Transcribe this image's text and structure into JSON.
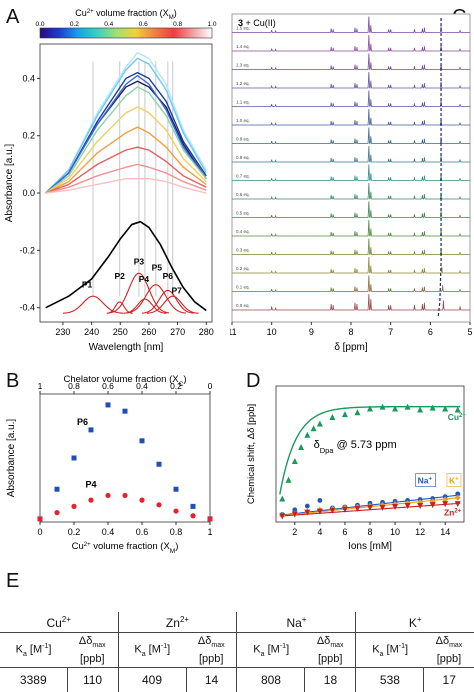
{
  "panels": {
    "A": "A",
    "B": "B",
    "C": "C",
    "D": "D",
    "E": "E"
  },
  "chart_data": [
    {
      "id": "A",
      "type": "line",
      "xlabel": "Wavelength [nm]",
      "ylabel": "Absorbance [a.u.]",
      "xlim": [
        222,
        282
      ],
      "ylim": [
        -0.45,
        0.52
      ],
      "xticks": [
        230,
        240,
        250,
        260,
        270,
        280
      ],
      "yticks": [
        -0.4,
        -0.2,
        0.0,
        0.2,
        0.4
      ],
      "colorbar": {
        "label": "Cu²⁺ volume fraction (X",
        "label_sub": "M",
        "label_end": ")",
        "ticks": [
          "0.0",
          "0.2",
          "0.4",
          "0.6",
          "0.8",
          "1.0"
        ]
      },
      "series": [
        {
          "color": "#b0e8ff",
          "values": [
            [
              224,
              0.0
            ],
            [
              232,
              0.08
            ],
            [
              242,
              0.28
            ],
            [
              252,
              0.44
            ],
            [
              256,
              0.49
            ],
            [
              260,
              0.47
            ],
            [
              266,
              0.38
            ],
            [
              272,
              0.22
            ],
            [
              280,
              0.08
            ]
          ]
        },
        {
          "color": "#6ec8f0",
          "values": [
            [
              224,
              0.0
            ],
            [
              232,
              0.08
            ],
            [
              242,
              0.27
            ],
            [
              252,
              0.43
            ],
            [
              256,
              0.47
            ],
            [
              260,
              0.45
            ],
            [
              266,
              0.36
            ],
            [
              272,
              0.21
            ],
            [
              280,
              0.07
            ]
          ]
        },
        {
          "color": "#1a3e9b",
          "values": [
            [
              224,
              0.0
            ],
            [
              232,
              0.07
            ],
            [
              242,
              0.25
            ],
            [
              252,
              0.4
            ],
            [
              256,
              0.42
            ],
            [
              260,
              0.4
            ],
            [
              266,
              0.32
            ],
            [
              272,
              0.18
            ],
            [
              280,
              0.06
            ]
          ]
        },
        {
          "color": "#1a1a6e",
          "values": [
            [
              224,
              0.0
            ],
            [
              232,
              0.07
            ],
            [
              242,
              0.24
            ],
            [
              252,
              0.37
            ],
            [
              256,
              0.39
            ],
            [
              260,
              0.37
            ],
            [
              266,
              0.3
            ],
            [
              272,
              0.17
            ],
            [
              280,
              0.05
            ]
          ]
        },
        {
          "color": "#3d6bd9",
          "values": [
            [
              224,
              0.0
            ],
            [
              232,
              0.07
            ],
            [
              242,
              0.24
            ],
            [
              252,
              0.38
            ],
            [
              256,
              0.41
            ],
            [
              260,
              0.38
            ],
            [
              266,
              0.29
            ],
            [
              272,
              0.16
            ],
            [
              280,
              0.05
            ]
          ]
        },
        {
          "color": "#8ad3a8",
          "values": [
            [
              224,
              0.0
            ],
            [
              232,
              0.06
            ],
            [
              242,
              0.22
            ],
            [
              252,
              0.34
            ],
            [
              256,
              0.37
            ],
            [
              260,
              0.35
            ],
            [
              266,
              0.27
            ],
            [
              272,
              0.15
            ],
            [
              280,
              0.05
            ]
          ]
        },
        {
          "color": "#f0d060",
          "values": [
            [
              224,
              0.0
            ],
            [
              232,
              0.05
            ],
            [
              242,
              0.18
            ],
            [
              252,
              0.28
            ],
            [
              256,
              0.3
            ],
            [
              260,
              0.28
            ],
            [
              266,
              0.22
            ],
            [
              272,
              0.12
            ],
            [
              280,
              0.04
            ]
          ]
        },
        {
          "color": "#f0a040",
          "values": [
            [
              224,
              0.0
            ],
            [
              232,
              0.04
            ],
            [
              242,
              0.14
            ],
            [
              252,
              0.21
            ],
            [
              256,
              0.23
            ],
            [
              260,
              0.21
            ],
            [
              266,
              0.16
            ],
            [
              272,
              0.09
            ],
            [
              280,
              0.03
            ]
          ]
        },
        {
          "color": "#e66060",
          "values": [
            [
              224,
              0.0
            ],
            [
              232,
              0.03
            ],
            [
              242,
              0.1
            ],
            [
              252,
              0.15
            ],
            [
              256,
              0.16
            ],
            [
              260,
              0.15
            ],
            [
              266,
              0.11
            ],
            [
              272,
              0.06
            ],
            [
              280,
              0.02
            ]
          ]
        },
        {
          "color": "#f09090",
          "values": [
            [
              224,
              0.0
            ],
            [
              232,
              0.02
            ],
            [
              242,
              0.06
            ],
            [
              252,
              0.09
            ],
            [
              256,
              0.1
            ],
            [
              260,
              0.09
            ],
            [
              266,
              0.07
            ],
            [
              272,
              0.04
            ],
            [
              280,
              0.01
            ]
          ]
        },
        {
          "color": "#f8c0c0",
          "values": [
            [
              224,
              0.0
            ],
            [
              232,
              0.01
            ],
            [
              242,
              0.03
            ],
            [
              252,
              0.05
            ],
            [
              256,
              0.05
            ],
            [
              260,
              0.05
            ],
            [
              266,
              0.04
            ],
            [
              272,
              0.02
            ],
            [
              280,
              0.0
            ]
          ]
        },
        {
          "color": "#000000",
          "values": [
            [
              224,
              -0.4
            ],
            [
              232,
              -0.36
            ],
            [
              240,
              -0.3
            ],
            [
              246,
              -0.22
            ],
            [
              250,
              -0.16
            ],
            [
              254,
              -0.11
            ],
            [
              257,
              -0.1
            ],
            [
              260,
              -0.12
            ],
            [
              264,
              -0.18
            ],
            [
              268,
              -0.26
            ],
            [
              272,
              -0.33
            ],
            [
              276,
              -0.38
            ],
            [
              280,
              -0.41
            ]
          ]
        }
      ],
      "peak_positions": [
        240.5,
        249.8,
        256.5,
        258.6,
        262.4,
        266.6,
        268.3
      ],
      "peaks": [
        {
          "label": "P1",
          "x": 240.5,
          "amp": 0.06,
          "width": 3.5
        },
        {
          "label": "P2",
          "x": 249.8,
          "amp": 0.04,
          "width": 1.5
        },
        {
          "label": "P3",
          "x": 256.5,
          "amp": 0.14,
          "width": 3.5
        },
        {
          "label": "P4",
          "x": 258.6,
          "amp": 0.05,
          "width": 2.5
        },
        {
          "label": "P5",
          "x": 262.4,
          "amp": 0.1,
          "width": 3.5
        },
        {
          "label": "P6",
          "x": 266.6,
          "amp": 0.08,
          "width": 3.0
        },
        {
          "label": "P7",
          "x": 268.3,
          "amp": 0.06,
          "width": 3.0
        }
      ],
      "peak_baseline": -0.42
    },
    {
      "id": "C",
      "type": "line",
      "title": "3 + Cu(II)",
      "xlabel": "δ [ppm]",
      "xticks": [
        "11",
        "10",
        "9",
        "8",
        "7",
        "6",
        "5"
      ],
      "traces": [
        "0.0 eq.",
        "0.1 eq.",
        "0.2 eq.",
        "0.3 eq.",
        "0.4 eq.",
        "0.5 eq.",
        "0.6 eq.",
        "0.7 eq.",
        "0.8 eq.",
        "0.9 eq.",
        "1.0 eq.",
        "1.1 eq.",
        "1.2 eq.",
        "1.3 eq.",
        "1.4 eq.",
        "1.5 eq."
      ],
      "trace_colors": [
        "#9a4a4a",
        "#8c6b3a",
        "#8a8a3a",
        "#6e8a3a",
        "#4f8a3e",
        "#3c8a4f",
        "#3a8a6a",
        "#3a8a8a",
        "#3a7a8a",
        "#3a6a8c",
        "#4a5e9a",
        "#5a5aa0",
        "#6a52a0",
        "#7a4aa0",
        "#8a4aa0",
        "#7a4aa0"
      ]
    },
    {
      "id": "B",
      "type": "scatter",
      "ylabel": "Absorbance [a.u.]",
      "xlabel": "Cu²⁺ volume fraction (X",
      "xlabel_sub": "M",
      "xlabel_end": ")",
      "top_label": "Chelator volume fraction (X",
      "top_label_sub": "C",
      "top_label_end": ")",
      "xticks": [
        "0",
        "0.2",
        "0.4",
        "0.6",
        "0.8",
        "1"
      ],
      "top_ticks": [
        "1",
        "0.8",
        "0.6",
        "0.4",
        "0.2",
        "0"
      ],
      "xlim": [
        0,
        1
      ],
      "ylim": [
        -0.02,
        0.8
      ],
      "series": [
        {
          "name": "P6",
          "color": "#1f4fb5",
          "marker": "square",
          "x": [
            0,
            0.1,
            0.2,
            0.3,
            0.4,
            0.5,
            0.6,
            0.7,
            0.8,
            0.9,
            1.0
          ],
          "y": [
            0.0,
            0.19,
            0.39,
            0.57,
            0.73,
            0.69,
            0.5,
            0.35,
            0.19,
            0.08,
            0.0
          ]
        },
        {
          "name": "P4",
          "color": "#e8222a",
          "marker": "circle",
          "x": [
            0,
            0.1,
            0.2,
            0.3,
            0.4,
            0.5,
            0.6,
            0.7,
            0.8,
            0.9,
            1.0
          ],
          "y": [
            0.0,
            0.04,
            0.08,
            0.12,
            0.15,
            0.15,
            0.12,
            0.09,
            0.05,
            0.02,
            0.0
          ]
        }
      ]
    },
    {
      "id": "D",
      "type": "scatter",
      "ylabel": "Chemical shift, Δδ [ppb]",
      "xlabel": "Ions [mM]",
      "annotation": "δ",
      "annotation_sub": "Dpa",
      "annotation_end": " @ 5.73 ppm",
      "xticks": [
        "2",
        "4",
        "6",
        "8",
        "10",
        "12",
        "14"
      ],
      "xlim": [
        0.5,
        15.5
      ],
      "ylim": [
        -5,
        140
      ],
      "series": [
        {
          "name": "Cu²⁺",
          "color": "#1a9a5a",
          "marker": "triangle-up",
          "x": [
            1,
            1.5,
            2,
            2.5,
            3,
            3.5,
            4,
            5,
            6,
            7,
            8,
            9,
            10,
            11,
            12,
            13,
            14,
            15
          ],
          "y": [
            20,
            40,
            60,
            75,
            88,
            95,
            100,
            107,
            110,
            112,
            116,
            118,
            116,
            118,
            115,
            117,
            116,
            115
          ]
        },
        {
          "name": "Na⁺",
          "color": "#2255c0",
          "marker": "circle",
          "x": [
            1,
            2,
            3,
            4,
            5,
            6,
            7,
            8,
            9,
            10,
            11,
            12,
            13,
            14,
            15
          ],
          "y": [
            3,
            8,
            12,
            18,
            10,
            11,
            13,
            15,
            16,
            17,
            18,
            19,
            20,
            22,
            25
          ]
        },
        {
          "name": "K⁺",
          "color": "#e8a020",
          "marker": "diamond",
          "x": [
            1,
            2,
            3,
            4,
            5,
            6,
            7,
            8,
            9,
            10,
            11,
            12,
            13,
            14,
            15
          ],
          "y": [
            2,
            4,
            6,
            8,
            9,
            10,
            11,
            12,
            13,
            14,
            15,
            16,
            17,
            19,
            21
          ]
        },
        {
          "name": "Zn²⁺",
          "color": "#c82020",
          "marker": "triangle-down",
          "x": [
            1,
            2,
            3,
            4,
            5,
            6,
            7,
            8,
            9,
            10,
            11,
            12,
            13,
            14,
            15
          ],
          "y": [
            1,
            3,
            5,
            6,
            7,
            8,
            9,
            10,
            10,
            11,
            12,
            12,
            13,
            14,
            14
          ]
        }
      ]
    },
    {
      "id": "E",
      "type": "table",
      "ions": [
        {
          "ion": "Cu",
          "sup": "2+",
          "ka": "3389",
          "dd": "110"
        },
        {
          "ion": "Zn",
          "sup": "2+",
          "ka": "409",
          "dd": "14"
        },
        {
          "ion": "Na",
          "sup": "+",
          "ka": "808",
          "dd": "18"
        },
        {
          "ion": "K",
          "sup": "+",
          "ka": "538",
          "dd": "17"
        }
      ],
      "ka_label": "K",
      "ka_sub": "a",
      "ka_unit": " [M",
      "ka_unit_sup": "-1",
      "ka_unit_end": "]",
      "dd_label": "Δδ",
      "dd_sub": "max",
      "dd_unit": "[ppb]"
    }
  ]
}
